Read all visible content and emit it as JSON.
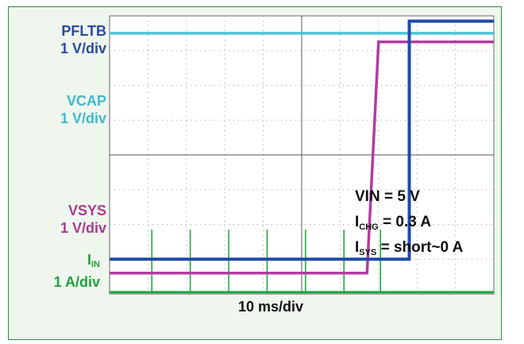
{
  "chart_data": {
    "type": "line",
    "xlabel": "10 ms/div",
    "x_divisions": 10,
    "y_divisions": 8,
    "grid": true,
    "colors": {
      "PFLTB": "#1f4aa8",
      "VCAP": "#4cc4d4",
      "VSYS": "#b23ca0",
      "IIN": "#22a845"
    },
    "channel_labels": [
      {
        "name": "PFLTB",
        "scale": "1 V/div",
        "color": "#2b4aa0"
      },
      {
        "name": "VCAP",
        "scale": "1 V/div",
        "color": "#3fb8cf"
      },
      {
        "name": "VSYS",
        "scale": "1 V/div",
        "color": "#a93a93"
      },
      {
        "name": "I",
        "sub": "IN",
        "scale": "1 A/div",
        "color": "#22a03f"
      }
    ],
    "annotations": [
      {
        "text": "VIN = 5 V",
        "sub": "",
        "rest": ""
      },
      {
        "text": "I",
        "sub": "CHG",
        "rest": " = 0.3 A"
      },
      {
        "text": "I",
        "sub": "SYS",
        "rest": " = short~0 A"
      }
    ],
    "series": [
      {
        "name": "PFLTB",
        "x": [
          0,
          7.8,
          7.8,
          10
        ],
        "y": [
          1.0,
          1.0,
          7.85,
          7.85
        ]
      },
      {
        "name": "VCAP",
        "x": [
          0,
          7.0,
          10
        ],
        "y": [
          7.5,
          7.5,
          7.5
        ]
      },
      {
        "name": "VSYS",
        "x": [
          0,
          6.7,
          7.0,
          10
        ],
        "y": [
          0.6,
          0.6,
          7.25,
          7.25
        ]
      },
      {
        "name": "IIN",
        "x": [
          0,
          10
        ],
        "y": [
          0.05,
          0.05
        ],
        "spikes_x": [
          1.1,
          2.1,
          3.1,
          4.1,
          5.1,
          6.1,
          7.05
        ],
        "spike_height": 1.8
      }
    ]
  }
}
